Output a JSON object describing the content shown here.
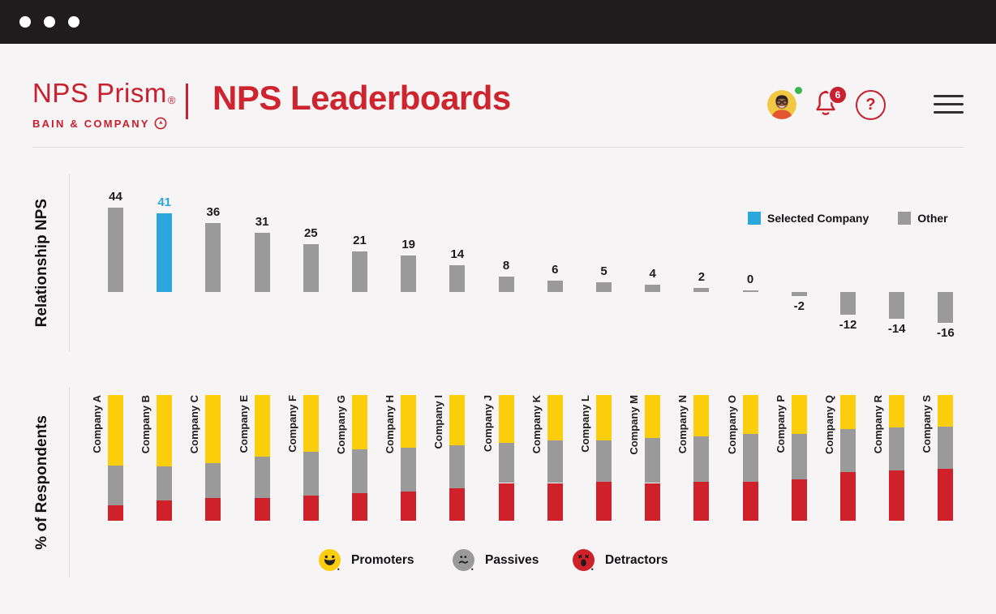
{
  "header": {
    "brand": "NPS Prism",
    "brand_mark": "®",
    "brand_sub": "BAIN & COMPANY",
    "title": "NPS Leaderboards",
    "notification_count": "6",
    "help_glyph": "?"
  },
  "colors": {
    "brand_red": "#c8202e",
    "selected_blue": "#2ba7de",
    "bar_gray": "#9b9a9a",
    "promoter_yellow": "#fccd0b",
    "detractor_red": "#ce2129",
    "online_green": "#3cb54b",
    "titlebar_black": "#201c1d",
    "page_background": "#f6f4f5"
  },
  "chart_data": [
    {
      "type": "bar",
      "title": "Relationship NPS",
      "ylabel": "Relationship NPS",
      "categories": [
        "Company A",
        "Company B",
        "Company C",
        "Company E",
        "Company F",
        "Company G",
        "Company H",
        "Company I",
        "Company J",
        "Company K",
        "Company L",
        "Company M",
        "Company N",
        "Company O",
        "Company P",
        "Company Q",
        "Company R",
        "Company S"
      ],
      "values": [
        44,
        41,
        36,
        31,
        25,
        21,
        19,
        14,
        8,
        6,
        5,
        4,
        2,
        0,
        -2,
        -12,
        -14,
        -16
      ],
      "selected_category": "Company B",
      "selected_value": 41,
      "legend": [
        {
          "label": "Selected Company",
          "color": "#2ba7de"
        },
        {
          "label": "Other",
          "color": "#9b9a9a"
        }
      ],
      "grid": false,
      "legend_position": "top-right"
    },
    {
      "type": "bar",
      "stacked": true,
      "title": "% of Respondents",
      "ylabel": "% of Respondents",
      "categories": [
        "Company A",
        "Company B",
        "Company C",
        "Company E",
        "Company F",
        "Company G",
        "Company H",
        "Company I",
        "Company J",
        "Company K",
        "Company L",
        "Company M",
        "Company N",
        "Company O",
        "Company P",
        "Company Q",
        "Company R",
        "Company S"
      ],
      "series": [
        {
          "name": "Promoters",
          "color": "#fccd0b",
          "values": [
            56,
            57,
            54,
            49,
            45,
            43,
            42,
            40,
            38,
            36,
            36,
            34,
            33,
            31,
            31,
            27,
            26,
            25
          ]
        },
        {
          "name": "Passives",
          "color": "#9b9a9a",
          "values": [
            32,
            27,
            28,
            33,
            35,
            35,
            35,
            34,
            32,
            34,
            33,
            36,
            36,
            38,
            36,
            34,
            34,
            34
          ]
        },
        {
          "name": "Detractors",
          "color": "#ce2129",
          "values": [
            12,
            16,
            18,
            18,
            20,
            22,
            23,
            26,
            30,
            30,
            31,
            30,
            31,
            31,
            33,
            39,
            40,
            41
          ]
        }
      ],
      "ylim": [
        0,
        100
      ],
      "grid": false,
      "legend_position": "bottom"
    }
  ]
}
